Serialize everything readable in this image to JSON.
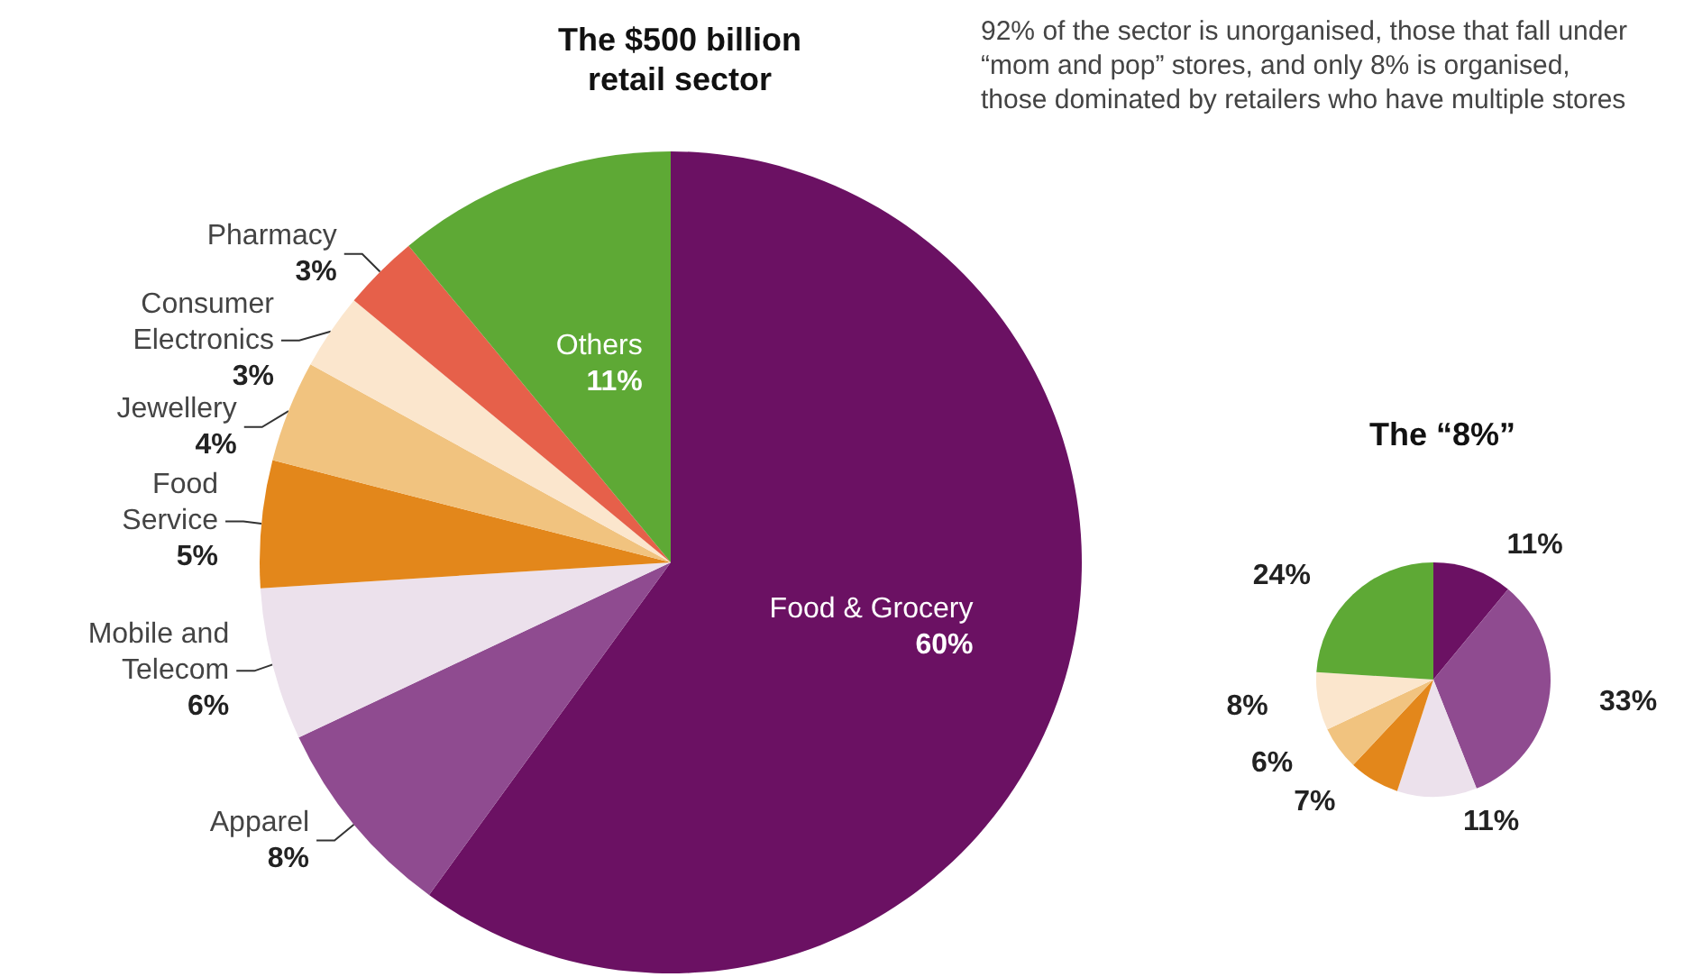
{
  "chart_data": [
    {
      "type": "pie",
      "title": "The $500 billion\nretail sector",
      "categories": [
        "Food & Grocery",
        "Apparel",
        "Mobile and\nTelecom",
        "Food\nService",
        "Jewellery",
        "Consumer\nElectronics",
        "Pharmacy",
        "Others"
      ],
      "values": [
        60,
        8,
        6,
        5,
        4,
        3,
        3,
        11
      ],
      "value_labels": [
        "60%",
        "8%",
        "6%",
        "5%",
        "4%",
        "3%",
        "3%",
        "11%"
      ],
      "colors": [
        "#6b1163",
        "#8f4b90",
        "#ece1ec",
        "#e3871b",
        "#f1c37f",
        "#fbe6cd",
        "#e6604a",
        "#5ea935"
      ],
      "annotations": [
        "92% of the sector is unorganised, those that fall under “mom and pop” stores, and only 8% is organised, those dominated by retailers who have multiple stores"
      ]
    },
    {
      "type": "pie",
      "title": "The “8%”",
      "categories": [
        null,
        null,
        null,
        null,
        null,
        null,
        null
      ],
      "values": [
        11,
        33,
        11,
        7,
        6,
        8,
        24
      ],
      "value_labels": [
        "11%",
        "33%",
        "11%",
        "7%",
        "6%",
        "8%",
        "24%"
      ],
      "colors": [
        "#6b1163",
        "#8f4b90",
        "#ece1ec",
        "#e3871b",
        "#f1c37f",
        "#fbe6cd",
        "#5ea935"
      ]
    }
  ]
}
